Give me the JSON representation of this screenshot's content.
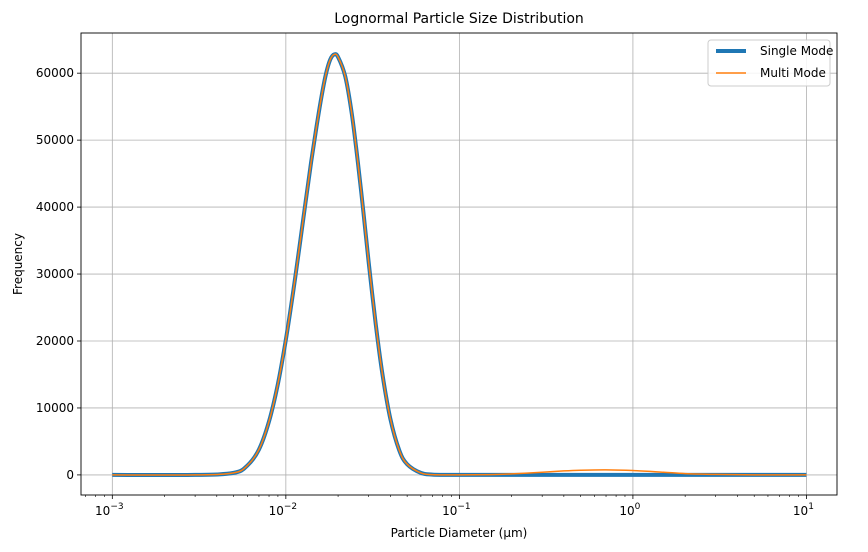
{
  "chart_data": {
    "type": "line",
    "title": "Lognormal Particle Size Distribution",
    "xlabel": "Particle Diameter (µm)",
    "ylabel": "Frequency",
    "xscale": "log",
    "xlim": [
      0.00066,
      15
    ],
    "ylim": [
      -3000,
      66000
    ],
    "xtick_values": [
      0.001,
      0.01,
      0.1,
      1,
      10
    ],
    "xtick_labels": [
      "10",
      "10",
      "10",
      "10",
      "10"
    ],
    "xtick_exponents": [
      "−3",
      "−2",
      "−1",
      "0",
      "1"
    ],
    "yticks": [
      0,
      10000,
      20000,
      30000,
      40000,
      50000,
      60000
    ],
    "ytick_labels": [
      "0",
      "10000",
      "20000",
      "30000",
      "40000",
      "50000",
      "60000"
    ],
    "grid": true,
    "legend_position": "top-right",
    "series": [
      {
        "name": "Single Mode",
        "color": "#1f77b4",
        "line_width": "thick",
        "x": [
          0.001,
          0.003,
          0.005,
          0.006,
          0.007,
          0.008,
          0.009,
          0.01,
          0.011,
          0.012,
          0.013,
          0.014,
          0.015,
          0.016,
          0.017,
          0.018,
          0.019,
          0.02,
          0.022,
          0.024,
          0.026,
          0.028,
          0.03,
          0.033,
          0.036,
          0.04,
          0.045,
          0.05,
          0.06,
          0.07,
          0.1,
          0.3,
          1,
          3,
          10
        ],
        "y": [
          0,
          0,
          300,
          1400,
          3800,
          8000,
          13600,
          20200,
          27200,
          34200,
          40800,
          46800,
          51900,
          56300,
          59800,
          62000,
          62800,
          62400,
          59500,
          53900,
          46700,
          39200,
          31800,
          22400,
          15100,
          8400,
          3700,
          1600,
          300,
          50,
          0,
          0,
          0,
          0,
          0
        ]
      },
      {
        "name": "Multi Mode",
        "color": "#ff7f0e",
        "line_width": "thin",
        "x": [
          0.001,
          0.003,
          0.005,
          0.006,
          0.007,
          0.008,
          0.009,
          0.01,
          0.011,
          0.012,
          0.013,
          0.014,
          0.015,
          0.016,
          0.017,
          0.018,
          0.019,
          0.02,
          0.022,
          0.024,
          0.026,
          0.028,
          0.03,
          0.033,
          0.036,
          0.04,
          0.045,
          0.05,
          0.06,
          0.07,
          0.1,
          0.15,
          0.2,
          0.3,
          0.4,
          0.5,
          0.7,
          1,
          1.5,
          2,
          3,
          5,
          10
        ],
        "y": [
          0,
          0,
          300,
          1400,
          3800,
          8000,
          13600,
          20200,
          27200,
          34200,
          40800,
          46800,
          51900,
          56300,
          59800,
          62000,
          62800,
          62400,
          59500,
          53900,
          46700,
          39200,
          31800,
          22400,
          15100,
          8400,
          3700,
          1600,
          300,
          50,
          10,
          50,
          150,
          400,
          600,
          700,
          750,
          650,
          400,
          200,
          80,
          10,
          0
        ]
      }
    ]
  }
}
